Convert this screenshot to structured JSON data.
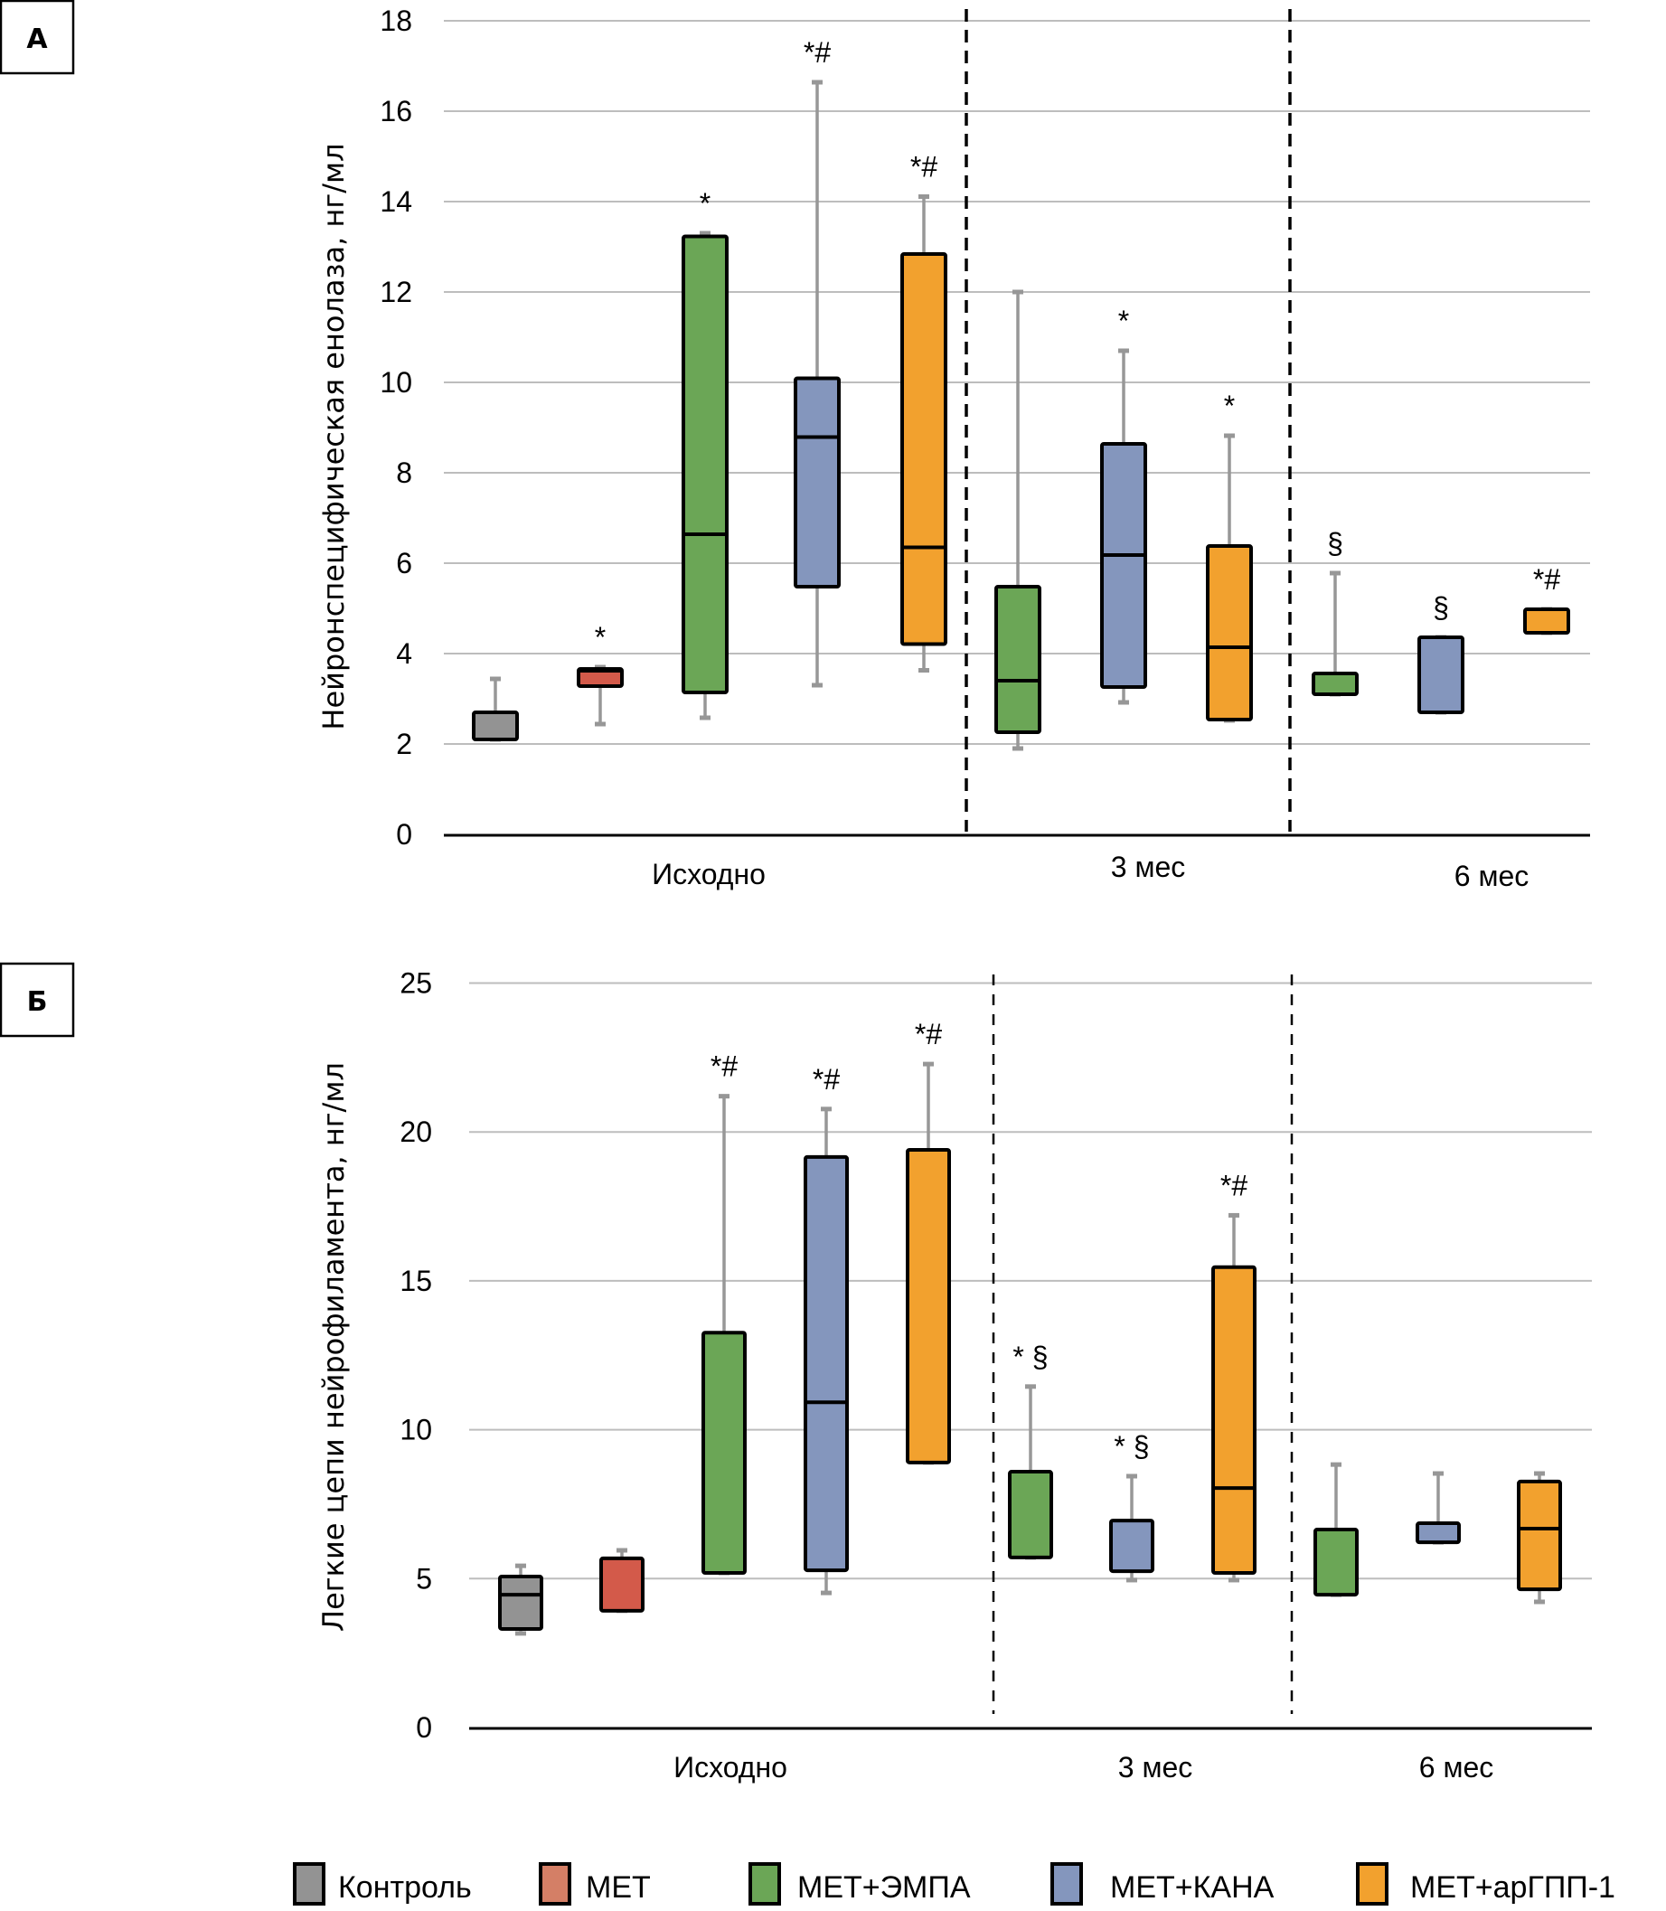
{
  "chart_data": [
    {
      "type": "boxplot",
      "panel_label": "А",
      "title": "",
      "xlabel": "",
      "ylabel": "Нейронспецифическая енолаза, нг/мл",
      "ylim": [
        0,
        18
      ],
      "ytick_step": 2,
      "yticks": [
        "0",
        "2",
        "4",
        "6",
        "8",
        "10",
        "12",
        "14",
        "16",
        "18"
      ],
      "grid": true,
      "categories": [
        "Исходно",
        "3 мес",
        "6 мес"
      ],
      "boxes": [
        {
          "period": "Исходно",
          "group": "Контроль",
          "min": 2.1,
          "q1": 2.1,
          "median": 2.1,
          "q3": 2.7,
          "max": 3.44,
          "annotation": ""
        },
        {
          "period": "Исходно",
          "group": "МЕТ",
          "min": 2.44,
          "q1": 3.28,
          "median": 3.62,
          "q3": 3.66,
          "max": 3.7,
          "annotation": "*"
        },
        {
          "period": "Исходно",
          "group": "МЕТ+ЭМПА",
          "min": 2.58,
          "q1": 3.14,
          "median": 6.64,
          "q3": 13.23,
          "max": 13.3,
          "annotation": "*"
        },
        {
          "period": "Исходно",
          "group": "МЕТ+КАНА",
          "min": 3.3,
          "q1": 5.48,
          "median": 8.79,
          "q3": 10.09,
          "max": 16.64,
          "annotation": "*#"
        },
        {
          "period": "Исходно",
          "group": "МЕТ+арГПП-1",
          "min": 3.63,
          "q1": 4.21,
          "median": 6.35,
          "q3": 12.84,
          "max": 14.11,
          "annotation": "*#"
        },
        {
          "period": "3 мес",
          "group": "МЕТ+ЭМПА",
          "min": 1.9,
          "q1": 2.26,
          "median": 3.4,
          "q3": 5.48,
          "max": 12.0,
          "annotation": ""
        },
        {
          "period": "3 мес",
          "group": "МЕТ+КАНА",
          "min": 2.92,
          "q1": 3.26,
          "median": 6.18,
          "q3": 8.64,
          "max": 10.7,
          "annotation": "*"
        },
        {
          "period": "3 мес",
          "group": "МЕТ+арГПП-1",
          "min": 2.52,
          "q1": 2.54,
          "median": 4.14,
          "q3": 6.38,
          "max": 8.82,
          "annotation": "*"
        },
        {
          "period": "6 мес",
          "group": "МЕТ+ЭМПА",
          "min": 3.1,
          "q1": 3.1,
          "median": 3.56,
          "q3": 3.56,
          "max": 5.78,
          "annotation": "§"
        },
        {
          "period": "6 мес",
          "group": "МЕТ+КАНА",
          "min": 2.7,
          "q1": 2.7,
          "median": 4.36,
          "q3": 4.36,
          "max": 4.36,
          "annotation": "§"
        },
        {
          "period": "6 мес",
          "group": "МЕТ+арГПП-1",
          "min": 4.46,
          "q1": 4.46,
          "median": 4.98,
          "q3": 4.98,
          "max": 4.98,
          "annotation": "*#"
        }
      ]
    },
    {
      "type": "boxplot",
      "panel_label": "Б",
      "title": "",
      "xlabel": "",
      "ylabel": "Легкие цепи нейрофиламента, нг/мл",
      "ylim": [
        0,
        25
      ],
      "ytick_step": 5,
      "yticks": [
        "0",
        "5",
        "10",
        "15",
        "20",
        "25"
      ],
      "grid": true,
      "categories": [
        "Исходно",
        "3 мес",
        "6 мес"
      ],
      "boxes": [
        {
          "period": "Исходно",
          "group": "Контроль",
          "min": 3.16,
          "q1": 3.31,
          "median": 4.46,
          "q3": 5.07,
          "max": 5.43,
          "annotation": ""
        },
        {
          "period": "Исходно",
          "group": "МЕТ",
          "min": 3.92,
          "q1": 3.92,
          "median": 5.68,
          "q3": 5.68,
          "max": 5.95,
          "annotation": ""
        },
        {
          "period": "Исходно",
          "group": "МЕТ+ЭМПА",
          "min": 5.19,
          "q1": 5.19,
          "median": 13.26,
          "q3": 13.26,
          "max": 21.2,
          "annotation": "*#"
        },
        {
          "period": "Исходно",
          "group": "МЕТ+КАНА",
          "min": 4.52,
          "q1": 5.28,
          "median": 10.92,
          "q3": 19.16,
          "max": 20.77,
          "annotation": "*#"
        },
        {
          "period": "Исходно",
          "group": "МЕТ+арГПП-1",
          "min": 8.9,
          "q1": 8.9,
          "median": 19.4,
          "q3": 19.4,
          "max": 22.28,
          "annotation": "*#"
        },
        {
          "period": "3 мес",
          "group": "МЕТ+ЭМПА",
          "min": 5.71,
          "q1": 5.71,
          "median": 8.59,
          "q3": 8.59,
          "max": 11.45,
          "annotation": "* §"
        },
        {
          "period": "3 мес",
          "group": "МЕТ+КАНА",
          "min": 4.95,
          "q1": 5.25,
          "median": 6.95,
          "q3": 6.95,
          "max": 8.44,
          "annotation": "* §"
        },
        {
          "period": "3 мес",
          "group": "МЕТ+арГПП-1",
          "min": 4.95,
          "q1": 5.19,
          "median": 8.04,
          "q3": 15.46,
          "max": 17.2,
          "annotation": "*#"
        },
        {
          "period": "6 мес",
          "group": "МЕТ+ЭМПА",
          "min": 4.46,
          "q1": 4.46,
          "median": 6.65,
          "q3": 6.65,
          "max": 8.83,
          "annotation": ""
        },
        {
          "period": "6 мес",
          "group": "МЕТ+КАНА",
          "min": 6.22,
          "q1": 6.22,
          "median": 6.86,
          "q3": 6.86,
          "max": 8.53,
          "annotation": ""
        },
        {
          "period": "6 мес",
          "group": "МЕТ+арГПП-1",
          "min": 4.22,
          "q1": 4.64,
          "median": 6.68,
          "q3": 8.26,
          "max": 8.53,
          "annotation": ""
        }
      ]
    }
  ],
  "legend": {
    "placement": "bottom",
    "items": [
      {
        "label": "Контроль",
        "color": "#939393"
      },
      {
        "label": "МЕТ",
        "color": "#D47F66"
      },
      {
        "label": "МЕТ+ЭМПА",
        "color": "#6BA656"
      },
      {
        "label": "МЕТ+КАНА",
        "color": "#8496BD"
      },
      {
        "label": "МЕТ+арГПП-1",
        "color": "#F2A12E"
      }
    ]
  },
  "group_colors": {
    "Контроль": "#939393",
    "МЕТ": "#D35A4A",
    "МЕТ+ЭМПА": "#6BA656",
    "МЕТ+КАНА": "#8496BD",
    "МЕТ+арГПП-1": "#F2A12E"
  },
  "whisker_color": "#979797",
  "gridline_color": "#BDBDBD"
}
